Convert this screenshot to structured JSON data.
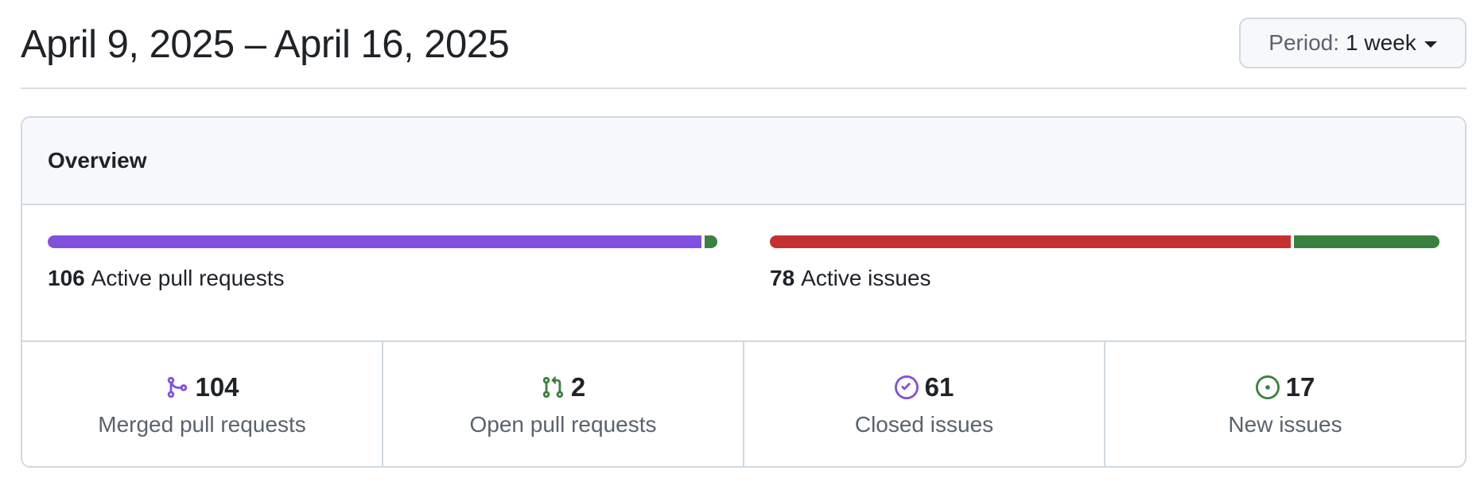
{
  "header": {
    "date_range": "April 9, 2025 – April 16, 2025",
    "period_label": "Period:",
    "period_value": "1 week"
  },
  "overview": {
    "title": "Overview",
    "pull_requests_bar": {
      "count": "106",
      "label": "Active pull requests",
      "segments": [
        {
          "value": 104,
          "color": "#8250df"
        },
        {
          "value": 2,
          "color": "#3a813f"
        }
      ]
    },
    "issues_bar": {
      "count": "78",
      "label": "Active issues",
      "segments": [
        {
          "value": 61,
          "color": "#c53030"
        },
        {
          "value": 17,
          "color": "#3a813f"
        }
      ]
    },
    "stats": [
      {
        "value": "104",
        "label": "Merged pull requests",
        "icon": "git-merge-icon",
        "color": "#8250df"
      },
      {
        "value": "2",
        "label": "Open pull requests",
        "icon": "git-pull-request-icon",
        "color": "#3a813f"
      },
      {
        "value": "61",
        "label": "Closed issues",
        "icon": "issue-closed-icon",
        "color": "#8250df"
      },
      {
        "value": "17",
        "label": "New issues",
        "icon": "issue-opened-icon",
        "color": "#3a813f"
      }
    ]
  }
}
